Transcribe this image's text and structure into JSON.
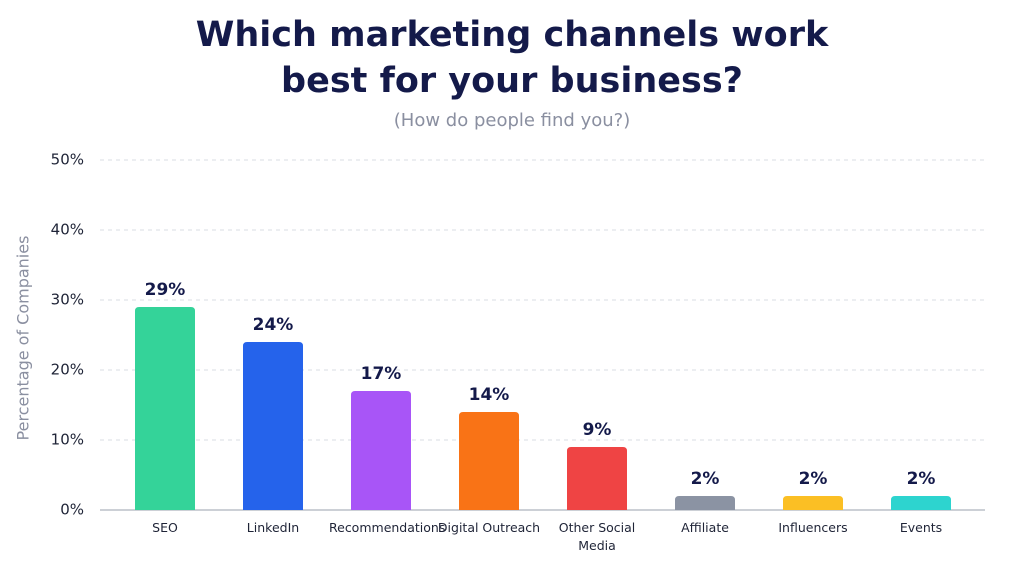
{
  "chart_data": {
    "type": "bar",
    "title": "Which marketing channels work best for your business?",
    "subtitle": "(How do people find you?)",
    "y_label": "Percentage of Companies",
    "categories": [
      "SEO",
      "LinkedIn",
      "Recommendations",
      "Digital Outreach",
      "Other Social Media",
      "Affiliate",
      "Influencers",
      "Events"
    ],
    "values": [
      29,
      24,
      17,
      14,
      9,
      2,
      2,
      2
    ],
    "value_labels": [
      "29%",
      "24%",
      "17%",
      "14%",
      "9%",
      "2%",
      "2%",
      "2%"
    ],
    "colors": [
      "#34d399",
      "#2563eb",
      "#a855f7",
      "#f97316",
      "#ef4444",
      "#8b93a3",
      "#fbbf24",
      "#2dd4cf"
    ],
    "ylim": [
      0,
      50
    ],
    "yticks": [
      {
        "value": 0,
        "label": "0%"
      },
      {
        "value": 10,
        "label": "10%"
      },
      {
        "value": 20,
        "label": "20%"
      },
      {
        "value": 30,
        "label": "30%"
      },
      {
        "value": 40,
        "label": "40%"
      },
      {
        "value": 50,
        "label": "50%"
      }
    ],
    "grid": true
  }
}
